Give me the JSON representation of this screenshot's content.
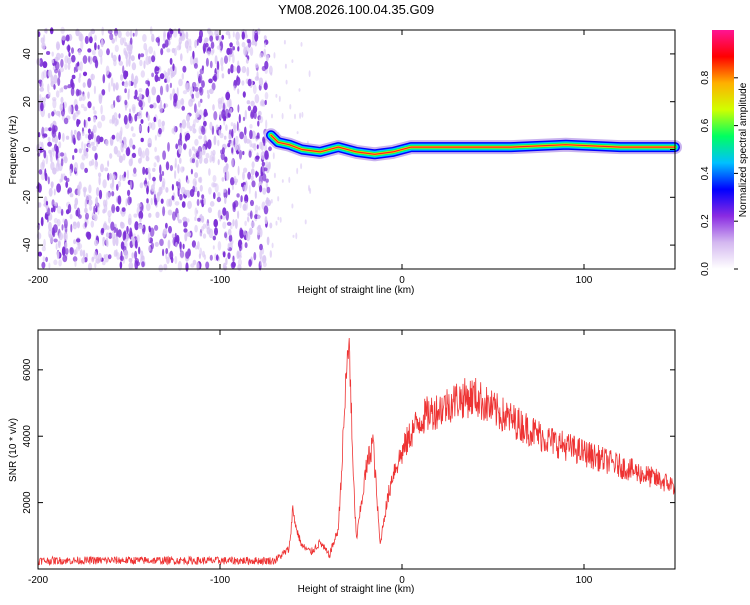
{
  "title": "YM08.2026.100.04.35.G09",
  "colors": {
    "line": "#ee3333",
    "speckle_dark": "#7b2fd6",
    "speckle_light": "#d9c6f3"
  },
  "chart_data": [
    {
      "type": "heatmap",
      "name": "spectrogram",
      "xlabel": "Height of straight line (km)",
      "ylabel": "Frequency (Hz)",
      "xlim": [
        -200,
        150
      ],
      "ylim": [
        -50,
        50
      ],
      "xticks": [
        "-200",
        "-100",
        "0",
        "100"
      ],
      "xtick_values": [
        -200,
        -100,
        0,
        100
      ],
      "yticks": [
        "40",
        "20",
        "0",
        "-20",
        "-40"
      ],
      "ytick_values": [
        40,
        20,
        0,
        -20,
        -40
      ],
      "noise_region_km": [
        -200,
        -72
      ],
      "signal_ridge": [
        {
          "x": -72,
          "y": 6
        },
        {
          "x": -68,
          "y": 3
        },
        {
          "x": -62,
          "y": 2
        },
        {
          "x": -55,
          "y": 0
        },
        {
          "x": -45,
          "y": -1
        },
        {
          "x": -35,
          "y": 1
        },
        {
          "x": -25,
          "y": -1
        },
        {
          "x": -15,
          "y": -2
        },
        {
          "x": -5,
          "y": -1
        },
        {
          "x": 5,
          "y": 1
        },
        {
          "x": 20,
          "y": 1
        },
        {
          "x": 60,
          "y": 1
        },
        {
          "x": 90,
          "y": 2
        },
        {
          "x": 120,
          "y": 1
        },
        {
          "x": 150,
          "y": 1
        }
      ]
    },
    {
      "type": "colorbar",
      "name": "amplitude-colorbar",
      "label": "Normalized spectral amplitude",
      "range": [
        0,
        1
      ],
      "ticks": [
        "0.0",
        "0.2",
        "0.4",
        "0.6",
        "0.8"
      ],
      "tick_values": [
        0.0,
        0.2,
        0.4,
        0.6,
        0.8
      ],
      "colors": [
        "#ffffff",
        "#d4b8f0",
        "#8a2be2",
        "#0000ff",
        "#00c0ff",
        "#00ff60",
        "#d0ff00",
        "#ffb000",
        "#ff0000",
        "#ff1493"
      ]
    },
    {
      "type": "line",
      "name": "snr-plot",
      "xlabel": "Height of straight line (km)",
      "ylabel": "SNR (10 * v/v)",
      "xlim": [
        -200,
        150
      ],
      "ylim": [
        0,
        7200
      ],
      "xticks": [
        "-200",
        "-100",
        "0",
        "100"
      ],
      "xtick_values": [
        -200,
        -100,
        0,
        100
      ],
      "yticks": [
        "2000",
        "4000",
        "6000"
      ],
      "ytick_values": [
        2000,
        4000,
        6000
      ],
      "x": [
        -200,
        -150,
        -100,
        -70,
        -62,
        -60,
        -58,
        -55,
        -50,
        -45,
        -40,
        -35,
        -33,
        -31,
        -29,
        -27,
        -25,
        -20,
        -16,
        -12,
        -10,
        -5,
        0,
        5,
        10,
        15,
        20,
        30,
        40,
        50,
        60,
        80,
        100,
        120,
        140,
        150
      ],
      "y": [
        250,
        260,
        250,
        250,
        600,
        1800,
        1200,
        700,
        500,
        800,
        400,
        1200,
        3200,
        5400,
        7000,
        3000,
        900,
        2900,
        3900,
        700,
        1500,
        2900,
        3500,
        4100,
        4500,
        4700,
        4800,
        5100,
        5200,
        4800,
        4500,
        3900,
        3500,
        3100,
        2700,
        2500
      ],
      "noise_amplitude": 120
    }
  ]
}
